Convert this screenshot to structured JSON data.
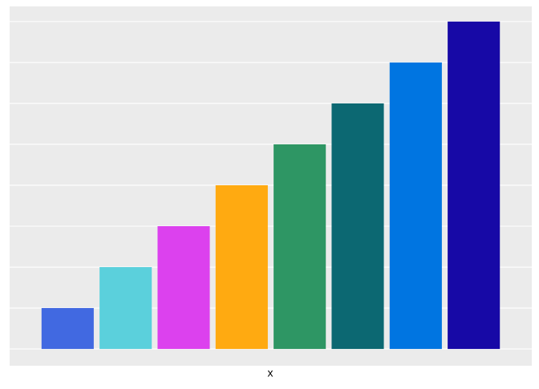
{
  "chart_data": {
    "type": "bar",
    "x_label": "x",
    "categories": [
      null,
      null,
      null,
      null,
      null,
      null,
      null,
      null
    ],
    "values": [
      1,
      2,
      3,
      4,
      5,
      6,
      7,
      8
    ],
    "colors": [
      "#4169e1",
      "#5bd0dc",
      "#dc41ee",
      "#ffaa11",
      "#2e9664",
      "#0c6872",
      "#0075e1",
      "#1709a6"
    ],
    "ylim": [
      -0.41,
      8.37
    ],
    "yticks": [
      0,
      1,
      2,
      3,
      4,
      5,
      6,
      7,
      8
    ],
    "grid": true
  }
}
